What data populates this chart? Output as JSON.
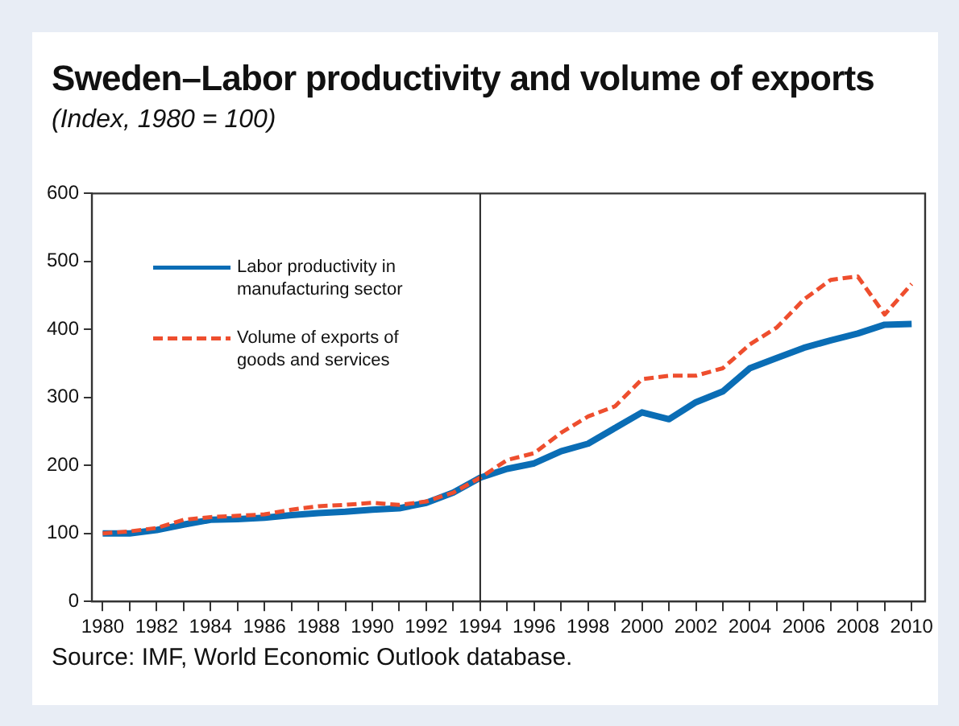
{
  "chart_data": {
    "type": "line",
    "title": "Sweden–Labor productivity and volume of exports",
    "subtitle": "(Index, 1980 = 100)",
    "x": [
      1980,
      1981,
      1982,
      1983,
      1984,
      1985,
      1986,
      1987,
      1988,
      1989,
      1990,
      1991,
      1992,
      1993,
      1994,
      1995,
      1996,
      1997,
      1998,
      1999,
      2000,
      2001,
      2002,
      2003,
      2004,
      2005,
      2006,
      2007,
      2008,
      2009,
      2010
    ],
    "series": [
      {
        "name": "Labor productivity in manufacturing sector",
        "color": "#0a6db5",
        "line_style": "solid",
        "values": [
          100,
          100,
          105,
          113,
          120,
          121,
          123,
          127,
          130,
          132,
          135,
          137,
          145,
          160,
          182,
          195,
          203,
          221,
          232,
          255,
          278,
          268,
          293,
          309,
          343,
          358,
          373,
          384,
          394,
          407,
          408
        ]
      },
      {
        "name": "Volume of exports of goods and services",
        "color": "#ee4e2e",
        "line_style": "dashed",
        "values": [
          100,
          103,
          108,
          120,
          124,
          126,
          128,
          135,
          140,
          142,
          145,
          142,
          147,
          160,
          182,
          208,
          218,
          248,
          272,
          287,
          327,
          332,
          332,
          343,
          378,
          403,
          444,
          473,
          478,
          422,
          467
        ]
      }
    ],
    "xlim": [
      1979.6,
      2010.5
    ],
    "xticks": [
      1980,
      {
        "value": 1981,
        "label": null
      },
      1982,
      {
        "value": 1983,
        "label": null
      },
      1984,
      {
        "value": 1985,
        "label": null
      },
      1986,
      {
        "value": 1987,
        "label": null
      },
      1988,
      {
        "value": 1989,
        "label": null
      },
      1990,
      {
        "value": 1991,
        "label": null
      },
      1992,
      {
        "value": 1993,
        "label": null
      },
      1994,
      {
        "value": 1995,
        "label": null
      },
      1996,
      {
        "value": 1997,
        "label": null
      },
      1998,
      {
        "value": 1999,
        "label": null
      },
      2000,
      {
        "value": 2001,
        "label": null
      },
      2002,
      {
        "value": 2003,
        "label": null
      },
      2004,
      {
        "value": 2005,
        "label": null
      },
      2006,
      {
        "value": 2007,
        "label": null
      },
      2008,
      {
        "value": 2009,
        "label": null
      },
      2010
    ],
    "ylim": [
      0,
      600
    ],
    "yticks": [
      0,
      100,
      200,
      300,
      400,
      500,
      600
    ],
    "ref_lines": [
      {
        "axis": "x",
        "value": 1994,
        "color": "#222222"
      }
    ],
    "grid": false,
    "legend": "top left",
    "marker": "none",
    "annotations": [
      "Source: IMF, World Economic Outlook database."
    ]
  }
}
